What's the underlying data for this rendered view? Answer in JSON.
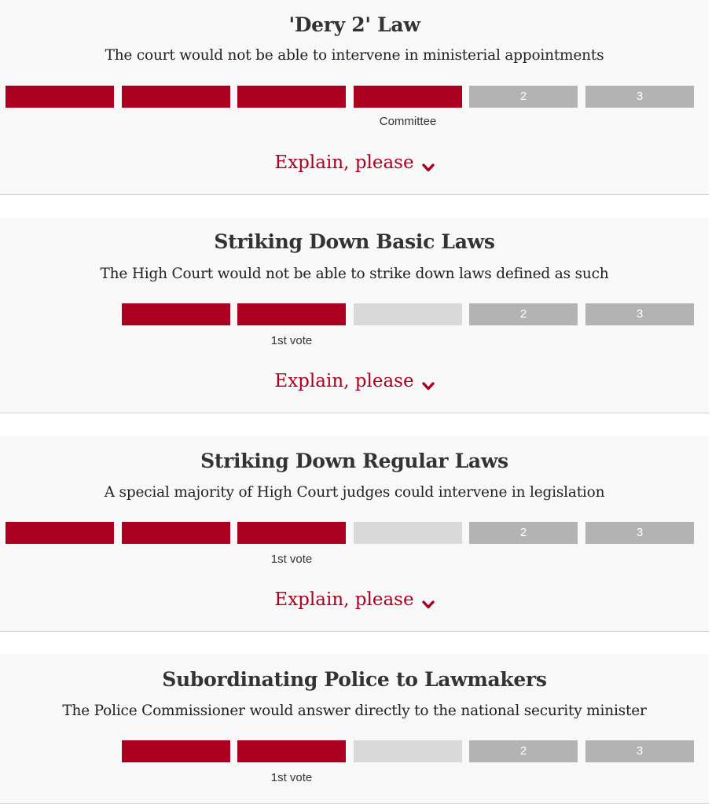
{
  "explain_label": "Explain, please",
  "colors": {
    "accent": "#ab0020",
    "pending": "#d9d9d9",
    "future": "#b3b3b3",
    "card_bg": "#f8f8f8"
  },
  "cards": [
    {
      "title": "'Dery 2' Law",
      "subtitle": "The court would not be able to intervene in ministerial appointments",
      "segments": [
        {
          "state": "filled",
          "label": ""
        },
        {
          "state": "filled",
          "label": ""
        },
        {
          "state": "filled",
          "label": ""
        },
        {
          "state": "filled",
          "label": ""
        },
        {
          "state": "future",
          "label": "2"
        },
        {
          "state": "future",
          "label": "3"
        }
      ],
      "stage_label": "Committee"
    },
    {
      "title": "Striking Down Basic Laws",
      "subtitle": "The High Court would not be able to strike down laws defined as such",
      "segments": [
        {
          "state": "filled",
          "label": ""
        },
        {
          "state": "filled",
          "label": ""
        },
        {
          "state": "pending",
          "label": ""
        },
        {
          "state": "future",
          "label": "2"
        },
        {
          "state": "future",
          "label": "3"
        }
      ],
      "stage_label": "1st vote"
    },
    {
      "title": "Striking Down Regular Laws",
      "subtitle": "A special majority of High Court judges could intervene in legislation",
      "segments": [
        {
          "state": "filled",
          "label": ""
        },
        {
          "state": "filled",
          "label": ""
        },
        {
          "state": "filled",
          "label": ""
        },
        {
          "state": "pending",
          "label": ""
        },
        {
          "state": "future",
          "label": "2"
        },
        {
          "state": "future",
          "label": "3"
        }
      ],
      "stage_label": "1st vote"
    },
    {
      "title": "Subordinating Police to Lawmakers",
      "subtitle": "The Police Commissioner would answer directly to the national security minister",
      "segments": [
        {
          "state": "filled",
          "label": ""
        },
        {
          "state": "filled",
          "label": ""
        },
        {
          "state": "pending",
          "label": ""
        },
        {
          "state": "future",
          "label": "2"
        },
        {
          "state": "future",
          "label": "3"
        }
      ],
      "stage_label": "1st vote"
    }
  ]
}
